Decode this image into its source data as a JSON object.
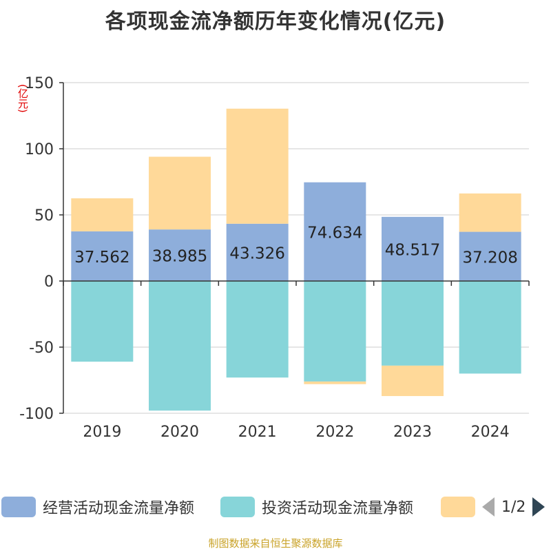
{
  "chart_data": {
    "type": "bar",
    "stacked": true,
    "title": "各项现金流净额历年变化情况(亿元)",
    "unit_label": "(亿元)",
    "categories": [
      "2019",
      "2020",
      "2021",
      "2022",
      "2023",
      "2024"
    ],
    "series": [
      {
        "name": "经营活动现金流量净额",
        "color": "#8eaedb",
        "values": [
          37.562,
          38.985,
          43.326,
          74.634,
          48.517,
          37.208
        ],
        "labels": [
          "37.562",
          "38.985",
          "43.326",
          "74.634",
          "48.517",
          "37.208"
        ]
      },
      {
        "name": "投资活动现金流量净额",
        "color": "#87d5d9",
        "values": [
          -61,
          -98,
          -73,
          -76,
          -64,
          -70
        ]
      },
      {
        "color": "#ffd999",
        "values": [
          25,
          55,
          87,
          -2,
          -23,
          29
        ]
      }
    ],
    "ylim": [
      -100,
      150
    ],
    "yticks": [
      150,
      100,
      50,
      0,
      -50,
      -100
    ],
    "grid": true,
    "legend_position": "bottom"
  },
  "legend": {
    "items": [
      "经营活动现金流量净额",
      "投资活动现金流量净额"
    ],
    "page_text": "1/2"
  },
  "source": "制图数据来自恒生聚源数据库"
}
